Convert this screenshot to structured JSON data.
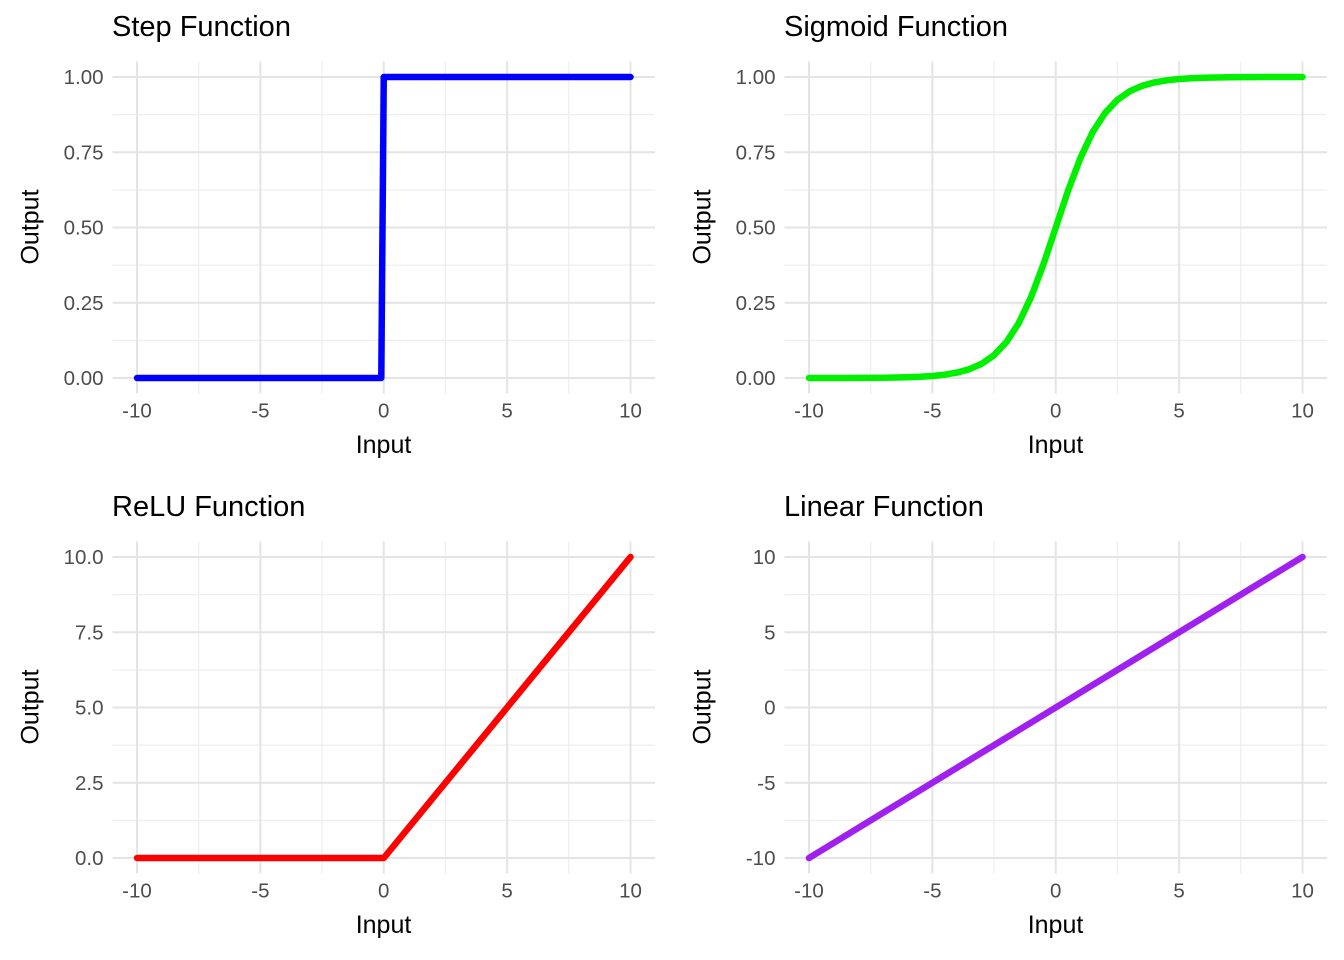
{
  "page": {
    "background": "#FFFFFF",
    "grid_major_color": "#E4E4E4",
    "grid_minor_color": "#EFEFEF",
    "tick_label_color": "#4D4D4D",
    "title_color": "#000000"
  },
  "chart_data": [
    {
      "type": "line",
      "title": "Step Function",
      "xlabel": "Input",
      "ylabel": "Output",
      "line_color": "#0000FF",
      "xlim": [
        -10,
        10
      ],
      "ylim": [
        0,
        1
      ],
      "xticks": {
        "values": [
          -10,
          -5,
          0,
          5,
          10
        ],
        "labels": [
          "-10",
          "-5",
          "0",
          "5",
          "10"
        ]
      },
      "yticks": {
        "values": [
          0,
          0.25,
          0.5,
          0.75,
          1.0
        ],
        "labels": [
          "0.00",
          "0.25",
          "0.50",
          "0.75",
          "1.00"
        ]
      },
      "xminor": [
        -7.5,
        -2.5,
        2.5,
        7.5
      ],
      "yminor": [
        0.125,
        0.375,
        0.625,
        0.875
      ],
      "grid": true,
      "legend": false,
      "x": [
        -10,
        -0.1,
        0,
        10
      ],
      "y": [
        0,
        0,
        1,
        1
      ]
    },
    {
      "type": "line",
      "title": "Sigmoid Function",
      "xlabel": "Input",
      "ylabel": "Output",
      "line_color": "#00F000",
      "xlim": [
        -10,
        10
      ],
      "ylim": [
        0,
        1
      ],
      "xticks": {
        "values": [
          -10,
          -5,
          0,
          5,
          10
        ],
        "labels": [
          "-10",
          "-5",
          "0",
          "5",
          "10"
        ]
      },
      "yticks": {
        "values": [
          0,
          0.25,
          0.5,
          0.75,
          1.0
        ],
        "labels": [
          "0.00",
          "0.25",
          "0.50",
          "0.75",
          "1.00"
        ]
      },
      "xminor": [
        -7.5,
        -2.5,
        2.5,
        7.5
      ],
      "yminor": [
        0.125,
        0.375,
        0.625,
        0.875
      ],
      "grid": true,
      "legend": false,
      "x": [
        -10,
        -9.5,
        -9,
        -8.5,
        -8,
        -7.5,
        -7,
        -6.5,
        -6,
        -5.5,
        -5,
        -4.5,
        -4,
        -3.5,
        -3,
        -2.5,
        -2,
        -1.5,
        -1,
        -0.5,
        0,
        0.5,
        1,
        1.5,
        2,
        2.5,
        3,
        3.5,
        4,
        4.5,
        5,
        5.5,
        6,
        6.5,
        7,
        7.5,
        8,
        8.5,
        9,
        9.5,
        10
      ],
      "y": [
        0.0,
        0.0001,
        0.0001,
        0.0002,
        0.0003,
        0.0006,
        0.0009,
        0.0015,
        0.0025,
        0.0041,
        0.0067,
        0.011,
        0.018,
        0.0293,
        0.0474,
        0.0759,
        0.1192,
        0.1824,
        0.2689,
        0.3775,
        0.5,
        0.6225,
        0.7311,
        0.8176,
        0.8808,
        0.9241,
        0.9526,
        0.9707,
        0.982,
        0.989,
        0.9933,
        0.9959,
        0.9975,
        0.9985,
        0.9991,
        0.9994,
        0.9997,
        0.9998,
        0.9999,
        0.9999,
        1.0
      ]
    },
    {
      "type": "line",
      "title": "ReLU Function",
      "xlabel": "Input",
      "ylabel": "Output",
      "line_color": "#FF0000",
      "xlim": [
        -10,
        10
      ],
      "ylim": [
        0,
        10
      ],
      "xticks": {
        "values": [
          -10,
          -5,
          0,
          5,
          10
        ],
        "labels": [
          "-10",
          "-5",
          "0",
          "5",
          "10"
        ]
      },
      "yticks": {
        "values": [
          0,
          2.5,
          5,
          7.5,
          10
        ],
        "labels": [
          "0.0",
          "2.5",
          "5.0",
          "7.5",
          "10.0"
        ]
      },
      "xminor": [
        -7.5,
        -2.5,
        2.5,
        7.5
      ],
      "yminor": [
        1.25,
        3.75,
        6.25,
        8.75
      ],
      "grid": true,
      "legend": false,
      "x": [
        -10,
        0,
        10
      ],
      "y": [
        0,
        0,
        10
      ]
    },
    {
      "type": "line",
      "title": "Linear Function",
      "xlabel": "Input",
      "ylabel": "Output",
      "line_color": "#A020F0",
      "xlim": [
        -10,
        10
      ],
      "ylim": [
        -10,
        10
      ],
      "xticks": {
        "values": [
          -10,
          -5,
          0,
          5,
          10
        ],
        "labels": [
          "-10",
          "-5",
          "0",
          "5",
          "10"
        ]
      },
      "yticks": {
        "values": [
          -10,
          -5,
          0,
          5,
          10
        ],
        "labels": [
          "-10",
          "-5",
          "0",
          "5",
          "10"
        ]
      },
      "xminor": [
        -7.5,
        -2.5,
        2.5,
        7.5
      ],
      "yminor": [
        -7.5,
        -2.5,
        2.5,
        7.5
      ],
      "grid": true,
      "legend": false,
      "x": [
        -10,
        10
      ],
      "y": [
        -10,
        10
      ]
    }
  ]
}
